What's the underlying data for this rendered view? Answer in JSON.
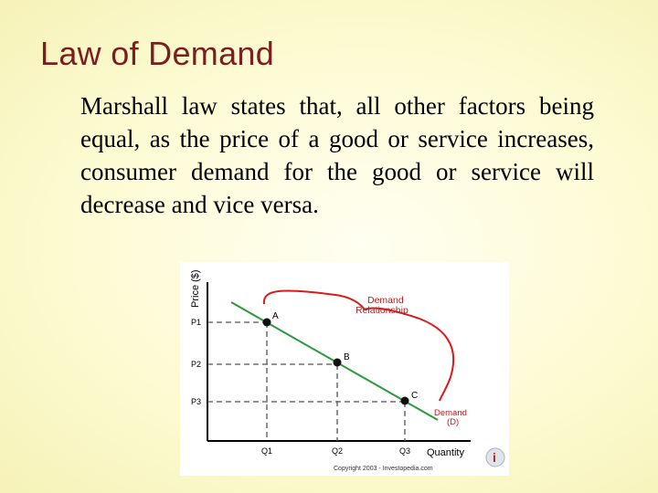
{
  "slide": {
    "title": "Law of Demand",
    "body": "Marshall law states that, all other factors being equal, as the price of a good or service increases, consumer demand for the good or service will decrease and vice versa."
  },
  "figure": {
    "y_axis_label": "Price ($)",
    "x_axis_label": "Quantity",
    "price_labels": [
      "P1",
      "P2",
      "P3"
    ],
    "quantity_labels": [
      "Q1",
      "Q2",
      "Q3"
    ],
    "points": [
      {
        "label": "A",
        "quantity_level": 1,
        "price_level": 1
      },
      {
        "label": "B",
        "quantity_level": 2,
        "price_level": 2
      },
      {
        "label": "C",
        "quantity_level": 3,
        "price_level": 3
      }
    ],
    "bracket_label_line1": "Demand",
    "bracket_label_line2": "Relationship",
    "curve_label_line1": "Demand",
    "curve_label_line2": "(D)",
    "copyright": "Copyright 2003 - Investopedia.com",
    "logo_letter": "i",
    "colors": {
      "curve": "#2e9a3e",
      "bracket": "#d81c1c",
      "label_red": "#b22222",
      "axis": "#000000",
      "dash": "#555555",
      "point": "#111111"
    }
  }
}
